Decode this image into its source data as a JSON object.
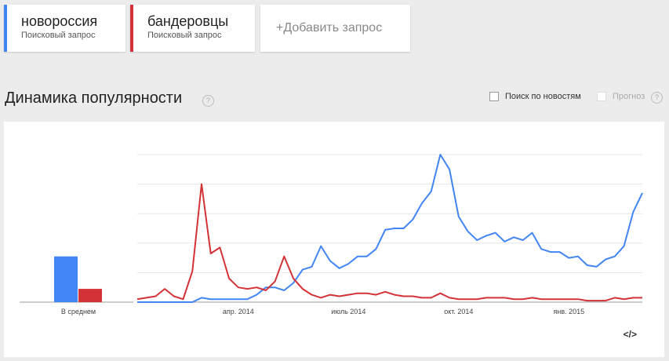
{
  "terms": [
    {
      "label": "новороссия",
      "sublabel": "Поисковый запрос",
      "color": "#4285f4"
    },
    {
      "label": "бандеровцы",
      "sublabel": "Поисковый запрос",
      "color": "#d33236"
    }
  ],
  "add_query": "+Добавить запрос",
  "heading": "Динамика популярности",
  "help_glyph": "?",
  "options": {
    "news": {
      "label": "Поиск по новостям",
      "checked": false,
      "enabled": true
    },
    "forecast": {
      "label": "Прогноз",
      "checked": false,
      "enabled": false
    }
  },
  "embed_glyph": "</>",
  "chart_data": [
    {
      "type": "bar",
      "xlabel": "В среднем",
      "ylim": [
        0,
        100
      ],
      "series": [
        {
          "name": "новороссия",
          "color": "#4285f4",
          "values": [
            31
          ]
        },
        {
          "name": "бандеровцы",
          "color": "#d33236",
          "values": [
            9
          ]
        }
      ]
    },
    {
      "type": "line",
      "ylim": [
        0,
        100
      ],
      "grid": true,
      "x_tick_labels": [
        "апр. 2014",
        "июль 2014",
        "окт. 2014",
        "янв. 2015"
      ],
      "x_tick_index": [
        11,
        23,
        35,
        47
      ],
      "series": [
        {
          "name": "новороссия",
          "color": "#4285f4",
          "values": [
            0,
            0,
            0,
            0,
            0,
            0,
            0,
            3,
            2,
            2,
            2,
            2,
            2,
            5,
            10,
            10,
            8,
            13,
            22,
            24,
            38,
            28,
            23,
            26,
            31,
            31,
            36,
            49,
            50,
            50,
            56,
            67,
            75,
            100,
            90,
            58,
            48,
            42,
            45,
            47,
            41,
            44,
            42,
            47,
            36,
            34,
            34,
            30,
            31,
            25,
            24,
            29,
            31,
            38,
            61,
            74
          ]
        },
        {
          "name": "бандеровцы",
          "color": "#d33236",
          "values": [
            2,
            3,
            4,
            9,
            4,
            2,
            21,
            80,
            33,
            37,
            16,
            10,
            9,
            10,
            8,
            14,
            31,
            16,
            9,
            5,
            3,
            5,
            4,
            5,
            6,
            6,
            5,
            7,
            5,
            4,
            4,
            3,
            3,
            6,
            3,
            2,
            2,
            2,
            3,
            3,
            3,
            2,
            2,
            3,
            2,
            2,
            2,
            2,
            2,
            1,
            1,
            1,
            3,
            2,
            3,
            3
          ]
        }
      ]
    }
  ]
}
